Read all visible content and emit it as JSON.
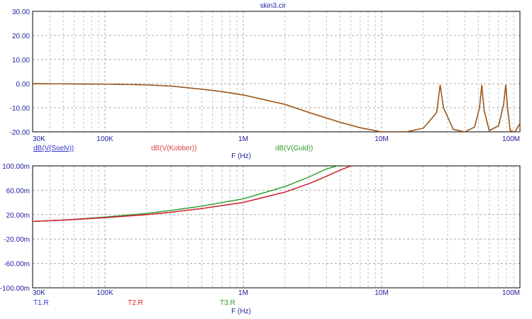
{
  "window": {
    "title": "skin3.cir"
  },
  "chart_data": [
    {
      "type": "line",
      "title": "skin3.cir",
      "xscale": "log",
      "xlim": [
        30000,
        100000000
      ],
      "ylim": [
        -20,
        30
      ],
      "xlabel": "F (Hz)",
      "xticks": [
        {
          "value": 30000,
          "label": "30K"
        },
        {
          "value": 100000,
          "label": "100K"
        },
        {
          "value": 1000000,
          "label": "1M"
        },
        {
          "value": 10000000,
          "label": "10M"
        },
        {
          "value": 100000000,
          "label": "100M"
        }
      ],
      "yticks": [
        {
          "value": 30,
          "label": "30.00"
        },
        {
          "value": 20,
          "label": "20.00"
        },
        {
          "value": 10,
          "label": "10.00"
        },
        {
          "value": 0,
          "label": "0.00"
        },
        {
          "value": -10,
          "label": "-10.00"
        },
        {
          "value": -20,
          "label": "-20.00"
        }
      ],
      "grid": true,
      "series": [
        {
          "name": "dB(V(Soelv))",
          "color": "#3535d0",
          "underline": true,
          "x": [
            30000,
            100000,
            200000,
            300000,
            500000,
            700000,
            1000000,
            2000000,
            3000000,
            5000000,
            7000000,
            10000000,
            15000000,
            20000000,
            25000000,
            26500000,
            28000000,
            33000000,
            40000000,
            47000000,
            51000000,
            53000000,
            55000000,
            60000000,
            70000000,
            76000000,
            79000000,
            81000000,
            85000000,
            92000000,
            100000000
          ],
          "y": [
            0,
            -0.2,
            -0.5,
            -1.0,
            -2.3,
            -3.3,
            -4.7,
            -8.6,
            -12.0,
            -16.0,
            -18.3,
            -20,
            -20,
            -18.5,
            -12.0,
            -0.5,
            -10.0,
            -19.0,
            -20,
            -18.0,
            -10.0,
            -0.5,
            -11.0,
            -19.5,
            -17.5,
            -9.0,
            -0.5,
            -9.0,
            -19.5,
            -20,
            -16.5
          ]
        },
        {
          "name": "dB(V(Kobber))",
          "color": "#e04040",
          "x": [
            30000,
            100000,
            200000,
            300000,
            500000,
            700000,
            1000000,
            2000000,
            3000000,
            5000000,
            7000000,
            10000000,
            15000000,
            20000000,
            25000000,
            26500000,
            28000000,
            33000000,
            40000000,
            47000000,
            51000000,
            53000000,
            55000000,
            60000000,
            70000000,
            76000000,
            79000000,
            81000000,
            85000000,
            92000000,
            100000000
          ],
          "y": [
            0,
            -0.2,
            -0.5,
            -1.0,
            -2.3,
            -3.3,
            -4.7,
            -8.6,
            -12.0,
            -16.0,
            -18.3,
            -20,
            -20,
            -18.5,
            -12.0,
            -0.5,
            -10.0,
            -19.0,
            -20,
            -18.0,
            -10.0,
            -0.5,
            -11.0,
            -19.5,
            -17.5,
            -9.0,
            -0.5,
            -9.0,
            -19.5,
            -20,
            -16.5
          ]
        },
        {
          "name": "dB(V(Guld))",
          "color": "#2a9a2a",
          "x": [
            30000,
            100000,
            200000,
            300000,
            500000,
            700000,
            1000000,
            2000000,
            3000000,
            5000000,
            7000000,
            10000000,
            15000000,
            20000000,
            25000000,
            26500000,
            28000000,
            33000000,
            40000000,
            47000000,
            51000000,
            53000000,
            55000000,
            60000000,
            70000000,
            76000000,
            79000000,
            81000000,
            85000000,
            92000000,
            100000000
          ],
          "y": [
            0,
            -0.2,
            -0.5,
            -1.0,
            -2.3,
            -3.3,
            -4.7,
            -8.6,
            -12.0,
            -16.0,
            -18.3,
            -20,
            -20,
            -18.5,
            -12.0,
            -0.5,
            -10.0,
            -19.0,
            -20,
            -18.0,
            -10.0,
            -0.5,
            -11.0,
            -19.5,
            -17.5,
            -9.0,
            -0.5,
            -9.0,
            -19.5,
            -20,
            -16.5
          ]
        }
      ],
      "overlay_color": "#a05a1a"
    },
    {
      "type": "line",
      "xscale": "log",
      "xlim": [
        30000,
        100000000
      ],
      "ylim": [
        -0.1,
        0.1
      ],
      "xlabel": "F (Hz)",
      "xticks": [
        {
          "value": 30000,
          "label": "30K"
        },
        {
          "value": 100000,
          "label": "100K"
        },
        {
          "value": 1000000,
          "label": "1M"
        },
        {
          "value": 10000000,
          "label": "10M"
        },
        {
          "value": 100000000,
          "label": "100M"
        }
      ],
      "yticks": [
        {
          "value": 0.1,
          "label": "100.00m"
        },
        {
          "value": 0.06,
          "label": "60.00m"
        },
        {
          "value": 0.02,
          "label": "20.00m"
        },
        {
          "value": -0.02,
          "label": "-20.00m"
        },
        {
          "value": -0.06,
          "label": "-60.00m"
        },
        {
          "value": -0.1,
          "label": "-100.00m"
        }
      ],
      "grid": true,
      "series": [
        {
          "name": "T1.R",
          "color": "#3535d0",
          "x": [
            30000,
            50000,
            100000,
            200000,
            300000,
            500000,
            1000000,
            2000000,
            3000000,
            4000000,
            5000000,
            6000000
          ],
          "y": [
            0.009,
            0.011,
            0.015,
            0.02,
            0.024,
            0.03,
            0.04,
            0.057,
            0.071,
            0.083,
            0.093,
            0.1
          ]
        },
        {
          "name": "T2.R",
          "color": "#e02020",
          "x": [
            30000,
            50000,
            100000,
            200000,
            300000,
            500000,
            1000000,
            2000000,
            3000000,
            4000000,
            5000000,
            6000000
          ],
          "y": [
            0.009,
            0.011,
            0.015,
            0.02,
            0.024,
            0.03,
            0.04,
            0.057,
            0.071,
            0.083,
            0.093,
            0.1
          ]
        },
        {
          "name": "T3.R",
          "color": "#2a9a2a",
          "x": [
            30000,
            50000,
            100000,
            200000,
            300000,
            500000,
            1000000,
            2000000,
            3000000,
            4000000,
            4800000
          ],
          "y": [
            0.009,
            0.011,
            0.016,
            0.022,
            0.027,
            0.034,
            0.046,
            0.066,
            0.082,
            0.095,
            0.1
          ]
        }
      ]
    }
  ]
}
